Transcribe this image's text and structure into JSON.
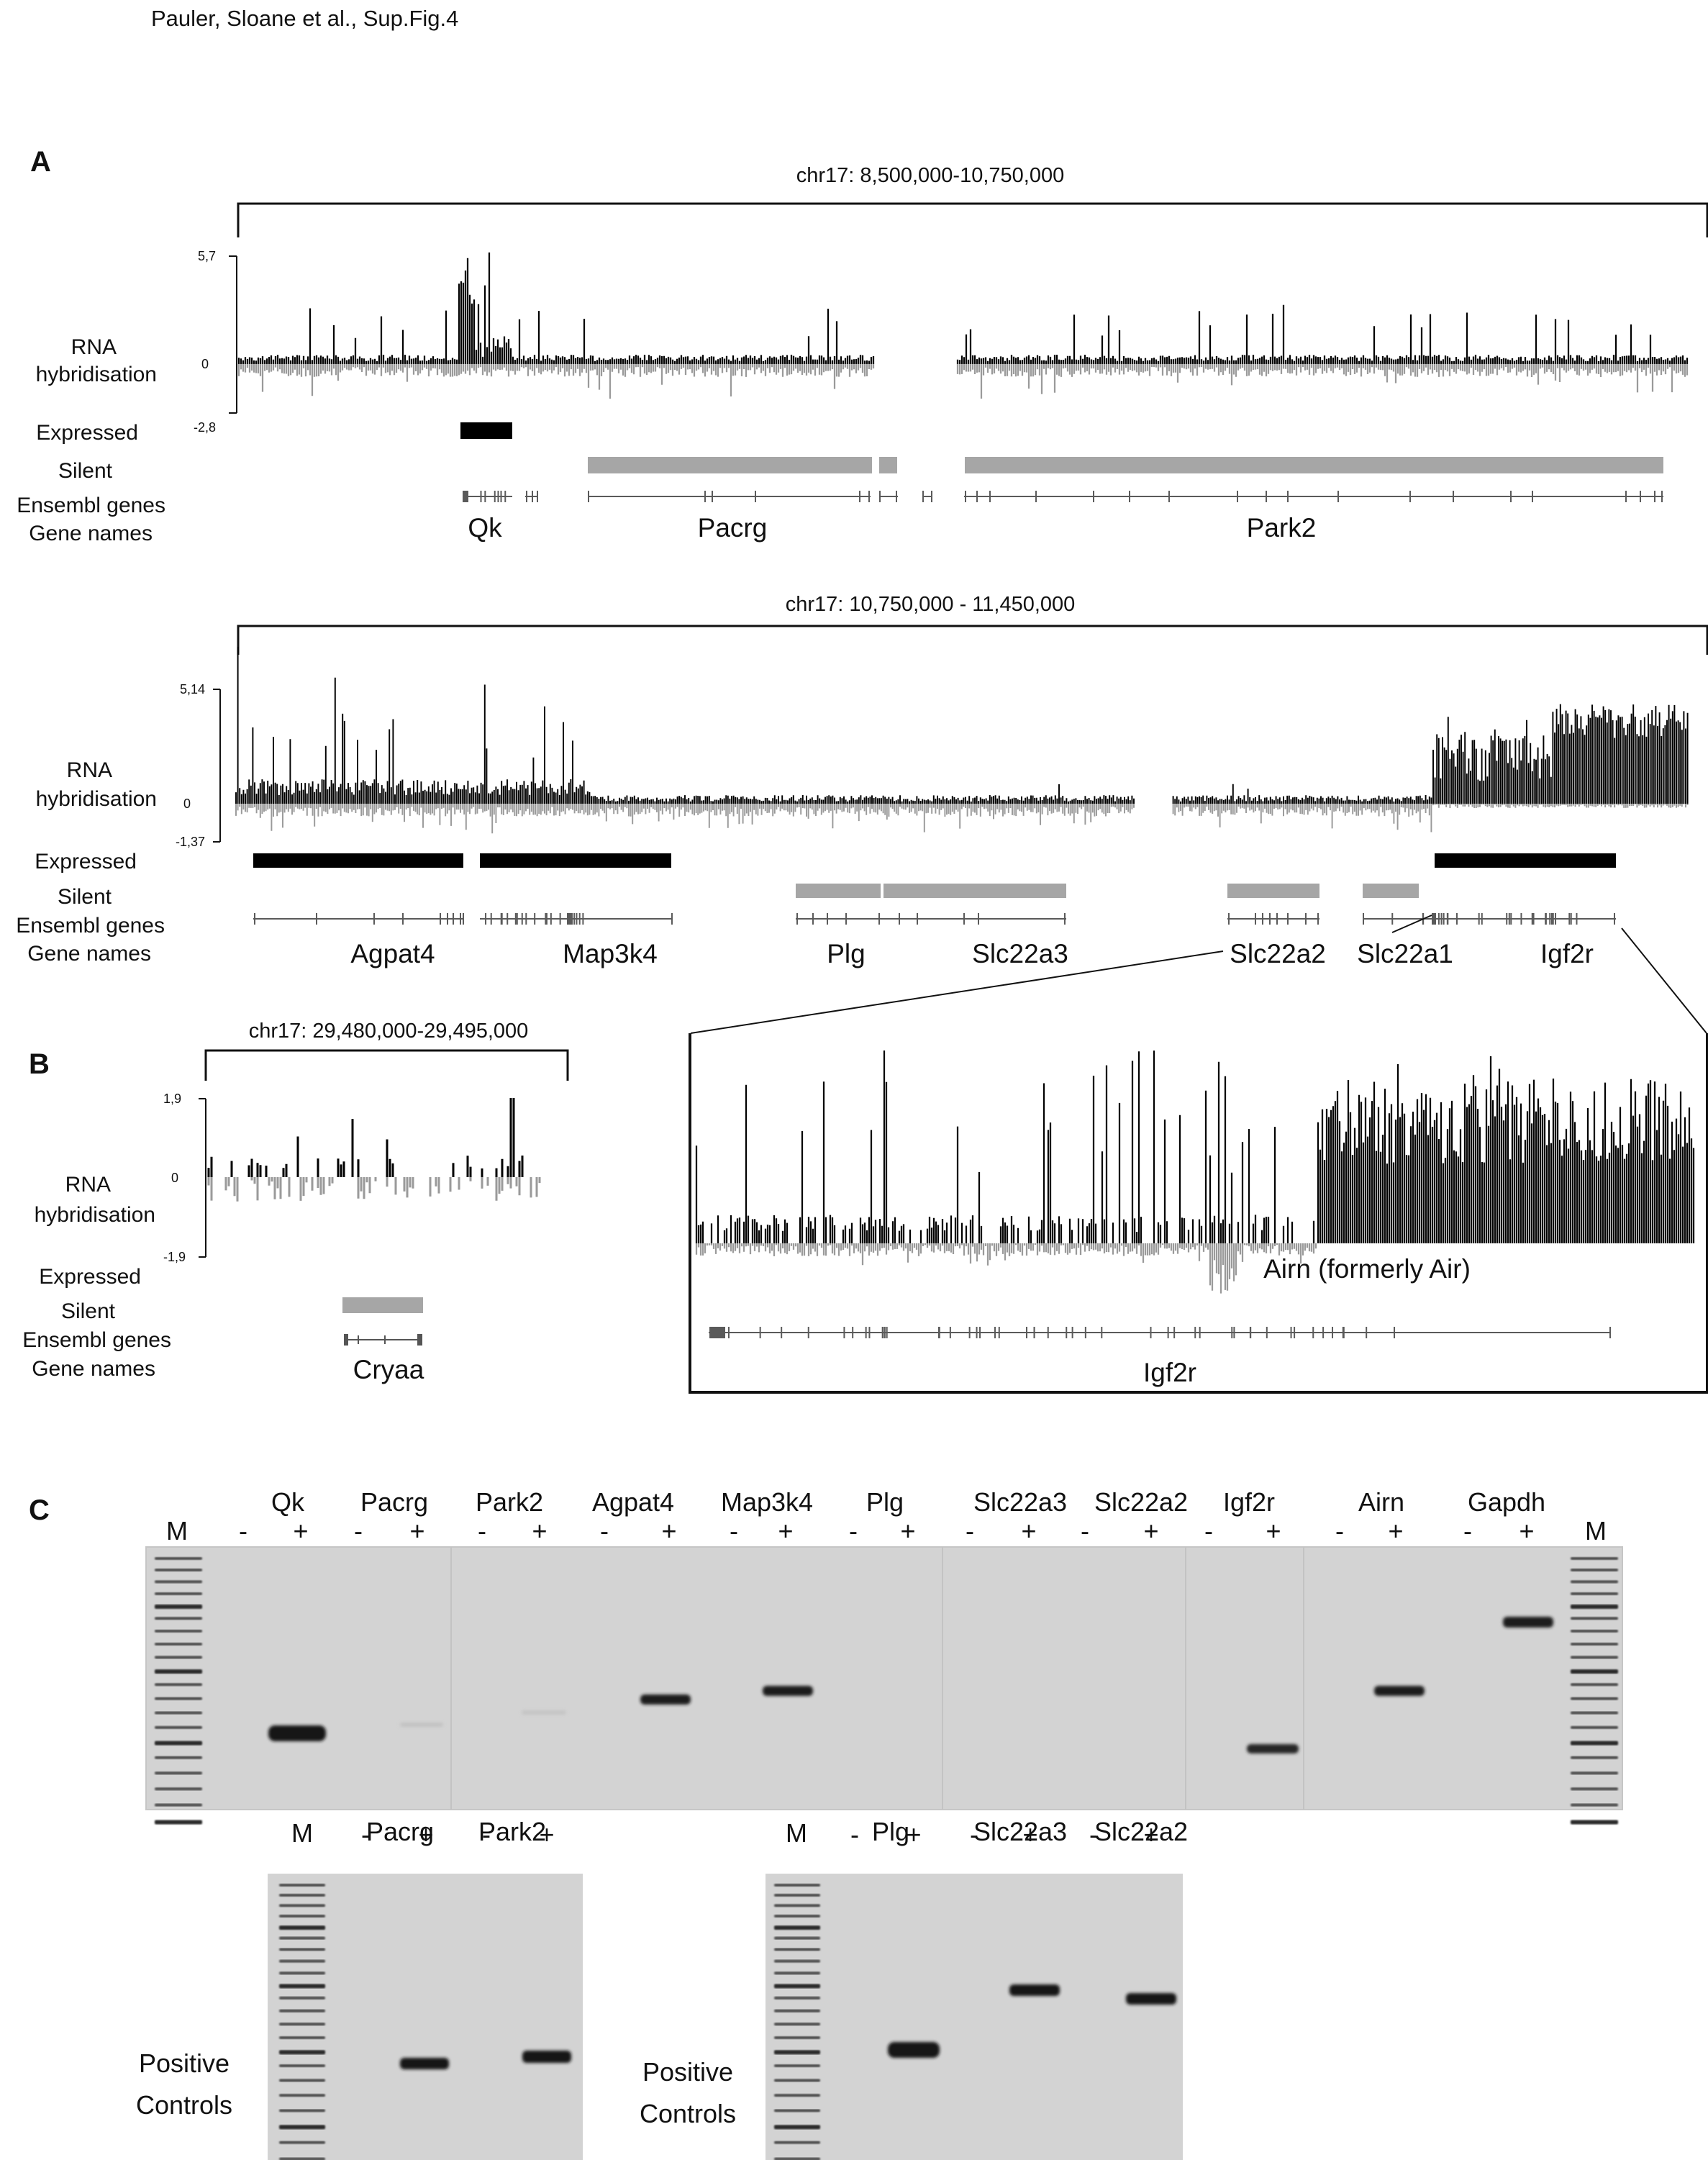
{
  "header": "Pauler, Sloane et al., Sup.Fig.4",
  "panels": {
    "a": "A",
    "b": "B",
    "c": "C"
  },
  "track_labels": {
    "rna_line1": "RNA",
    "rna_line2": "hybridisation",
    "expressed": "Expressed",
    "silent": "Silent",
    "ensembl": "Ensembl genes",
    "gene_names": "Gene names"
  },
  "panel_a1": {
    "region": "chr17: 8,500,000-10,750,000",
    "y_max": "5,7",
    "y_zero": "0",
    "y_min": "-2,8",
    "genes": [
      "Qk",
      "Pacrg",
      "Park2"
    ]
  },
  "panel_a2": {
    "region": "chr17: 10,750,000 - 11,450,000",
    "y_max": "5,14",
    "y_zero": "0",
    "y_min": "-1,37",
    "genes": [
      "Agpat4",
      "Map3k4",
      "Plg",
      "Slc22a3",
      "Slc22a2",
      "Slc22a1",
      "Igf2r"
    ]
  },
  "panel_b": {
    "region": "chr17: 29,480,000-29,495,000",
    "y_max": "1,9",
    "y_zero": "0",
    "y_min": "-1,9",
    "genes": [
      "Cryaa"
    ]
  },
  "zoom": {
    "airn_label": "Airn (formerly Air)",
    "gene": "Igf2r"
  },
  "gel_main": {
    "marker": "M",
    "genes": [
      "Qk",
      "Pacrg",
      "Park2",
      "Agpat4",
      "Map3k4",
      "Plg",
      "Slc22a3",
      "Slc22a2",
      "Igf2r",
      "Airn",
      "Gapdh"
    ],
    "minus": "-",
    "plus": "+"
  },
  "controls_left": {
    "marker": "M",
    "genes": [
      "Pacrg",
      "Park2"
    ],
    "label_line1": "Positive",
    "label_line2": "Controls"
  },
  "controls_right": {
    "marker": "M",
    "genes": [
      "Plg",
      "Slc22a3",
      "Slc22a2"
    ],
    "label_line1": "Positive",
    "label_line2": "Controls"
  },
  "colors": {
    "expressed": "#000000",
    "silent": "#a6a6a6",
    "gel_background": "#d3d3d3",
    "band": "#1a1a1a"
  }
}
